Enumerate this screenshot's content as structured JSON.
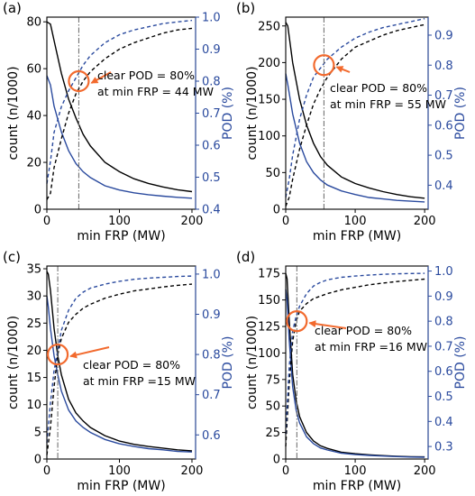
{
  "chart_data": [
    {
      "panel_label": "(a)",
      "type": "line",
      "xlabel": "min FRP (MW)",
      "ylabel_left": "count (n/1000)",
      "ylabel_right": "POD (%)",
      "xlim": [
        0,
        205
      ],
      "ylim_left": [
        0,
        82
      ],
      "ylim_right": [
        0.4,
        1.0
      ],
      "xticks": [
        "0",
        "100",
        "200"
      ],
      "yticks_left": [
        "0",
        "20",
        "40",
        "60",
        "80"
      ],
      "yticks_right": [
        "0.4",
        "0.5",
        "0.6",
        "0.7",
        "0.8",
        "0.9",
        "1.0"
      ],
      "vline_x": 44,
      "highlight": {
        "x": 44,
        "pod": 0.8
      },
      "annotation": [
        "clear POD = 80%",
        "at min FRP = 44 MW"
      ],
      "series": [
        {
          "axis": "left",
          "color": "#000000",
          "style": "solid",
          "x": [
            0,
            5,
            10,
            20,
            30,
            40,
            50,
            60,
            80,
            100,
            120,
            140,
            160,
            180,
            200
          ],
          "y": [
            80,
            79,
            72,
            58,
            47,
            39,
            32,
            27,
            20,
            16,
            13,
            11,
            9.5,
            8.3,
            7.5
          ]
        },
        {
          "axis": "left",
          "color": "#2a4a9e",
          "style": "solid",
          "x": [
            0,
            5,
            10,
            20,
            30,
            40,
            50,
            60,
            80,
            100,
            120,
            140,
            160,
            180,
            200
          ],
          "y": [
            57,
            53,
            44,
            33,
            25,
            19.5,
            16,
            13.5,
            10,
            8.2,
            7,
            6.2,
            5.6,
            5.1,
            4.7
          ]
        },
        {
          "axis": "right",
          "color": "#000000",
          "style": "dashed",
          "x": [
            0,
            5,
            10,
            20,
            30,
            40,
            50,
            60,
            80,
            100,
            120,
            140,
            160,
            180,
            200
          ],
          "y": [
            0.43,
            0.45,
            0.53,
            0.62,
            0.7,
            0.76,
            0.8,
            0.83,
            0.87,
            0.9,
            0.92,
            0.935,
            0.95,
            0.96,
            0.965
          ]
        },
        {
          "axis": "right",
          "color": "#2a4a9e",
          "style": "dashed",
          "x": [
            0,
            5,
            10,
            20,
            30,
            40,
            50,
            60,
            80,
            100,
            120,
            140,
            160,
            180,
            200
          ],
          "y": [
            0.48,
            0.55,
            0.64,
            0.72,
            0.77,
            0.81,
            0.85,
            0.88,
            0.92,
            0.945,
            0.96,
            0.97,
            0.98,
            0.985,
            0.99
          ]
        }
      ]
    },
    {
      "panel_label": "(b)",
      "type": "line",
      "xlabel": "min FRP (MW)",
      "ylabel_left": "count (n/1000)",
      "ylabel_right": "POD (%)",
      "xlim": [
        0,
        205
      ],
      "ylim_left": [
        0,
        262
      ],
      "ylim_right": [
        0.32,
        0.96
      ],
      "xticks": [
        "0",
        "100",
        "200"
      ],
      "yticks_left": [
        "0",
        "50",
        "100",
        "150",
        "200",
        "250"
      ],
      "yticks_right": [
        "0.4",
        "0.5",
        "0.6",
        "0.7",
        "0.8",
        "0.9"
      ],
      "vline_x": 55,
      "highlight": {
        "x": 55,
        "pod": 0.8
      },
      "annotation": [
        "clear POD = 80%",
        "at min FRP = 55 MW"
      ],
      "series": [
        {
          "axis": "left",
          "color": "#000000",
          "style": "solid",
          "x": [
            0,
            3,
            10,
            20,
            30,
            40,
            50,
            60,
            80,
            100,
            120,
            140,
            160,
            180,
            200
          ],
          "y": [
            255,
            250,
            200,
            150,
            115,
            90,
            72,
            60,
            44,
            35,
            29,
            24,
            20,
            17,
            15
          ]
        },
        {
          "axis": "left",
          "color": "#2a4a9e",
          "style": "solid",
          "x": [
            0,
            3,
            10,
            20,
            30,
            40,
            50,
            60,
            80,
            100,
            120,
            140,
            160,
            180,
            200
          ],
          "y": [
            185,
            170,
            130,
            90,
            65,
            50,
            40,
            33,
            25,
            20,
            16,
            14,
            12,
            11,
            10
          ]
        },
        {
          "axis": "right",
          "color": "#000000",
          "style": "dashed",
          "x": [
            0,
            5,
            10,
            20,
            30,
            40,
            50,
            60,
            80,
            100,
            120,
            140,
            160,
            180,
            200
          ],
          "y": [
            0.33,
            0.36,
            0.42,
            0.52,
            0.6,
            0.67,
            0.72,
            0.76,
            0.82,
            0.86,
            0.88,
            0.9,
            0.915,
            0.925,
            0.935
          ]
        },
        {
          "axis": "right",
          "color": "#2a4a9e",
          "style": "dashed",
          "x": [
            0,
            5,
            10,
            20,
            30,
            40,
            50,
            60,
            80,
            100,
            120,
            140,
            160,
            180,
            200
          ],
          "y": [
            0.36,
            0.42,
            0.5,
            0.62,
            0.7,
            0.76,
            0.79,
            0.82,
            0.86,
            0.89,
            0.91,
            0.925,
            0.935,
            0.945,
            0.955
          ]
        }
      ]
    },
    {
      "panel_label": "(c)",
      "type": "line",
      "xlabel": "min FRP (MW)",
      "ylabel_left": "count (n/1000)",
      "ylabel_right": "POD (%)",
      "xlim": [
        0,
        205
      ],
      "ylim_left": [
        0,
        35.5
      ],
      "ylim_right": [
        0.54,
        1.02
      ],
      "xticks": [
        "0",
        "100",
        "200"
      ],
      "yticks_left": [
        "0",
        "5",
        "10",
        "15",
        "20",
        "25",
        "30",
        "35"
      ],
      "yticks_right": [
        "0.6",
        "0.7",
        "0.8",
        "0.9",
        "1.0"
      ],
      "vline_x": 15,
      "highlight": {
        "x": 15,
        "pod": 0.8
      },
      "annotation": [
        "clear POD = 80%",
        "at min FRP =15 MW"
      ],
      "series": [
        {
          "axis": "left",
          "color": "#000000",
          "style": "solid",
          "x": [
            0,
            2,
            5,
            10,
            15,
            20,
            30,
            40,
            50,
            60,
            80,
            100,
            120,
            140,
            160,
            180,
            200
          ],
          "y": [
            34.5,
            34,
            31,
            24,
            19,
            15.5,
            11,
            8.5,
            7,
            5.8,
            4.3,
            3.3,
            2.7,
            2.3,
            2,
            1.7,
            1.5
          ]
        },
        {
          "axis": "left",
          "color": "#2a4a9e",
          "style": "solid",
          "x": [
            0,
            2,
            5,
            10,
            15,
            20,
            30,
            40,
            50,
            60,
            80,
            100,
            120,
            140,
            160,
            180,
            200
          ],
          "y": [
            30,
            28,
            24,
            19,
            15.5,
            12.5,
            9,
            7,
            5.8,
            4.9,
            3.6,
            2.8,
            2.3,
            1.9,
            1.7,
            1.4,
            1.3
          ]
        },
        {
          "axis": "right",
          "color": "#000000",
          "style": "dashed",
          "x": [
            0,
            5,
            10,
            15,
            20,
            30,
            40,
            50,
            60,
            80,
            100,
            120,
            140,
            160,
            180,
            200
          ],
          "y": [
            0.55,
            0.62,
            0.72,
            0.8,
            0.84,
            0.88,
            0.9,
            0.915,
            0.925,
            0.94,
            0.95,
            0.958,
            0.963,
            0.968,
            0.972,
            0.975
          ]
        },
        {
          "axis": "right",
          "color": "#2a4a9e",
          "style": "dashed",
          "x": [
            0,
            5,
            10,
            15,
            20,
            30,
            40,
            50,
            60,
            80,
            100,
            120,
            140,
            160,
            180,
            200
          ],
          "y": [
            0.58,
            0.68,
            0.76,
            0.81,
            0.86,
            0.91,
            0.94,
            0.955,
            0.965,
            0.975,
            0.982,
            0.987,
            0.99,
            0.992,
            0.994,
            0.995
          ]
        }
      ]
    },
    {
      "panel_label": "(d)",
      "type": "line",
      "xlabel": "min FRP (MW)",
      "ylabel_left": "count (n/1000)",
      "ylabel_right": "POD (%)",
      "xlim": [
        0,
        205
      ],
      "ylim_left": [
        0,
        182
      ],
      "ylim_right": [
        0.25,
        1.02
      ],
      "xticks": [
        "0",
        "100",
        "200"
      ],
      "yticks_left": [
        "0",
        "25",
        "50",
        "75",
        "100",
        "125",
        "150",
        "175"
      ],
      "yticks_right": [
        "0.3",
        "0.4",
        "0.5",
        "0.6",
        "0.7",
        "0.8",
        "0.9",
        "1.0"
      ],
      "vline_x": 16,
      "highlight": {
        "x": 16,
        "pod": 0.8
      },
      "annotation": [
        "clear POD = 80%",
        "at min FRP =16 MW"
      ],
      "series": [
        {
          "axis": "left",
          "color": "#000000",
          "style": "solid",
          "x": [
            0,
            2,
            5,
            10,
            15,
            20,
            30,
            40,
            50,
            60,
            80,
            100,
            120,
            140,
            160,
            180,
            200
          ],
          "y": [
            175,
            170,
            130,
            80,
            55,
            40,
            25,
            17,
            12.5,
            10,
            6.5,
            5,
            4,
            3.2,
            2.6,
            2.2,
            2
          ]
        },
        {
          "axis": "left",
          "color": "#2a4a9e",
          "style": "solid",
          "x": [
            0,
            2,
            5,
            10,
            15,
            20,
            30,
            40,
            50,
            60,
            80,
            100,
            120,
            140,
            160,
            180,
            200
          ],
          "y": [
            160,
            150,
            112,
            68,
            46,
            34,
            21,
            14.5,
            10.5,
            8.5,
            5.5,
            4.2,
            3.4,
            2.8,
            2.3,
            1.9,
            1.7
          ]
        },
        {
          "axis": "right",
          "color": "#000000",
          "style": "dashed",
          "x": [
            0,
            5,
            10,
            15,
            20,
            30,
            40,
            50,
            60,
            80,
            100,
            120,
            140,
            160,
            180,
            200
          ],
          "y": [
            0.3,
            0.55,
            0.72,
            0.8,
            0.84,
            0.87,
            0.89,
            0.9,
            0.91,
            0.925,
            0.935,
            0.945,
            0.952,
            0.958,
            0.963,
            0.968
          ]
        },
        {
          "axis": "right",
          "color": "#2a4a9e",
          "style": "dashed",
          "x": [
            0,
            5,
            10,
            15,
            20,
            30,
            40,
            50,
            60,
            80,
            100,
            120,
            140,
            160,
            180,
            200
          ],
          "y": [
            0.35,
            0.62,
            0.76,
            0.82,
            0.86,
            0.91,
            0.94,
            0.955,
            0.965,
            0.975,
            0.98,
            0.984,
            0.987,
            0.989,
            0.99,
            0.991
          ]
        }
      ]
    }
  ]
}
